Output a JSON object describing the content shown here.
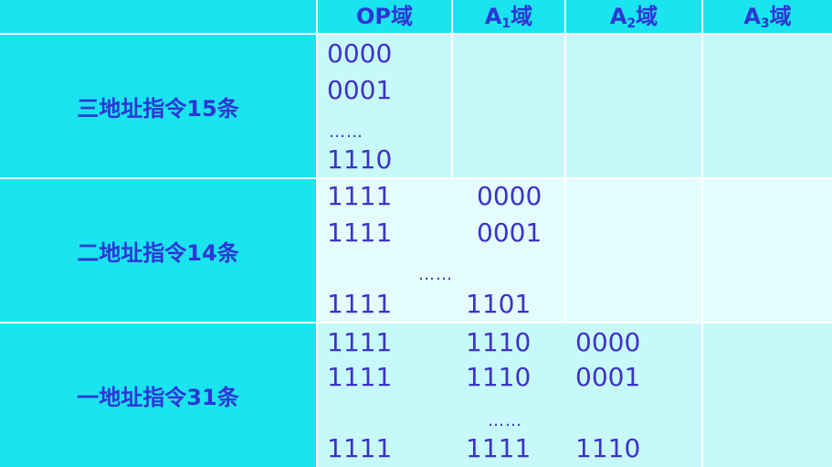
{
  "header": {
    "op": "OP域",
    "a1_main": "A",
    "a1_sub": "1",
    "a1_tail": "域",
    "a2_main": "A",
    "a2_sub": "2",
    "a2_tail": "域",
    "a3_main": "A",
    "a3_sub": "3",
    "a3_tail": "域"
  },
  "groups": [
    {
      "label": "三地址指令15条",
      "rows": [
        {
          "op": "0000",
          "a1": "",
          "a2": ""
        },
        {
          "op": "0001",
          "a1": "",
          "a2": ""
        },
        {
          "op": "……",
          "a1": "",
          "a2": ""
        },
        {
          "op": "1110",
          "a1": "",
          "a2": ""
        }
      ]
    },
    {
      "label": "二地址指令14条",
      "rows": [
        {
          "op": "1111",
          "a1": "0000"
        },
        {
          "op": "1111",
          "a1": "0001"
        },
        {
          "dots": "……"
        },
        {
          "op": "1111",
          "a1": "1101"
        }
      ]
    },
    {
      "label": "一地址指令31条",
      "rows": [
        {
          "op": "1111",
          "a1": "1110",
          "a2": "0000"
        },
        {
          "op": "1111",
          "a1": "1110",
          "a2": "0001"
        },
        {
          "dots": "……"
        },
        {
          "op": "1111",
          "a1": "1111",
          "a2": "1110"
        }
      ]
    }
  ],
  "colors": {
    "header_bg": "#19e4f0",
    "label_bg": "#19e4f0",
    "band1": "#c8f9fa",
    "band2": "#e4fcfd",
    "text": "#2e35d6"
  }
}
